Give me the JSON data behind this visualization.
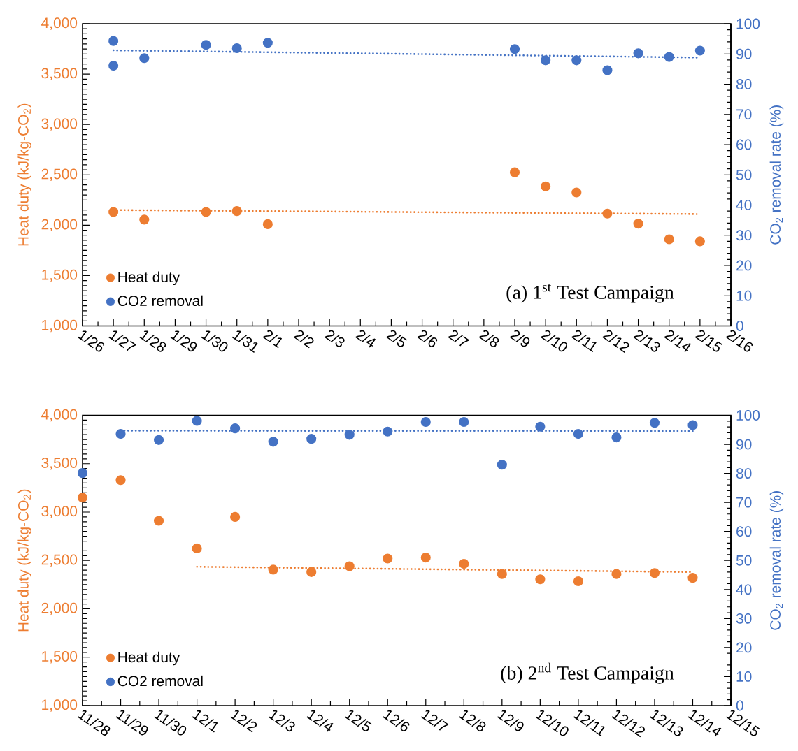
{
  "chart_data": [
    {
      "type": "scatter",
      "categories": [
        "1/26",
        "1/27",
        "1/28",
        "1/29",
        "1/30",
        "1/31",
        "2/1",
        "2/2",
        "2/3",
        "2/4",
        "2/5",
        "2/6",
        "2/7",
        "2/8",
        "2/9",
        "2/10",
        "2/11",
        "2/12",
        "2/13",
        "2/14",
        "2/15",
        "2/16"
      ],
      "ylabel": "Heat duty (kJ/kg-CO$_{2}$)",
      "y2label": "CO$_{2}$ removal rate (%)",
      "ylim": [
        1000,
        4000
      ],
      "yticks": [
        {
          "value": 1000,
          "label": "1,000"
        },
        {
          "value": 1500,
          "label": "1,500"
        },
        {
          "value": 2000,
          "label": "2,000"
        },
        {
          "value": 2500,
          "label": "2,500"
        },
        {
          "value": 3000,
          "label": "3,000"
        },
        {
          "value": 3500,
          "label": "3,500"
        },
        {
          "value": 4000,
          "label": "4,000"
        }
      ],
      "y2lim": [
        0,
        100
      ],
      "y2ticks": [
        0,
        10,
        20,
        30,
        40,
        50,
        60,
        70,
        80,
        90,
        100
      ],
      "legend": "bottom left",
      "annotations": [
        "(a) 1$^{st}$ Test Campaign"
      ],
      "series": [
        {
          "name": "Heat duty",
          "color": "#ed7d31",
          "marker": "circle",
          "x": [
            "1/27",
            "1/28",
            "1/30",
            "1/31",
            "2/1",
            "2/9",
            "2/10",
            "2/11",
            "2/12",
            "2/13",
            "2/14",
            "2/15"
          ],
          "values": [
            2130,
            2055,
            2130,
            2140,
            2010,
            2525,
            2385,
            2325,
            2115,
            2015,
            1860,
            1840
          ]
        },
        {
          "name": "CO2 removal",
          "color": "#4472c4",
          "axis": "y2",
          "marker": "circle",
          "x": [
            "1/27",
            "1/27",
            "1/28",
            "1/30",
            "1/31",
            "2/1",
            "2/9",
            "2/10",
            "2/11",
            "2/12",
            "2/13",
            "2/14",
            "2/15"
          ],
          "values": [
            94.3,
            86.1,
            88.6,
            93.0,
            91.9,
            93.7,
            91.6,
            87.9,
            87.9,
            84.6,
            90.2,
            89.0,
            91.1
          ]
        },
        {
          "type": "line",
          "color": "#ed7d31",
          "marker": "none",
          "line_style": "dotted",
          "x": [
            "1/27",
            "2/15"
          ],
          "values": [
            2150,
            2110
          ]
        },
        {
          "type": "line",
          "color": "#4472c4",
          "axis": "y2",
          "marker": "none",
          "line_style": "dotted",
          "x": [
            "1/27",
            "2/15"
          ],
          "values": [
            91.2,
            88.8
          ]
        }
      ]
    },
    {
      "type": "scatter",
      "categories": [
        "11/28",
        "11/29",
        "11/30",
        "12/1",
        "12/2",
        "12/3",
        "12/4",
        "12/5",
        "12/6",
        "12/7",
        "12/8",
        "12/9",
        "12/10",
        "12/11",
        "12/12",
        "12/13",
        "12/14",
        "12/15"
      ],
      "ylabel": "Heat duty (kJ/kg-CO$_{2}$)",
      "y2label": "CO$_{2}$ removal rate (%)",
      "ylim": [
        1000,
        4000
      ],
      "yticks": [
        {
          "value": 1000,
          "label": "1,000"
        },
        {
          "value": 1500,
          "label": "1,500"
        },
        {
          "value": 2000,
          "label": "2,000"
        },
        {
          "value": 2500,
          "label": "2,500"
        },
        {
          "value": 3000,
          "label": "3,000"
        },
        {
          "value": 3500,
          "label": "3,500"
        },
        {
          "value": 4000,
          "label": "4,000"
        }
      ],
      "y2lim": [
        0,
        100
      ],
      "y2ticks": [
        0,
        10,
        20,
        30,
        40,
        50,
        60,
        70,
        80,
        90,
        100
      ],
      "legend": "bottom left",
      "annotations": [
        "(b) 2$^{nd}$ Test Campaign"
      ],
      "series": [
        {
          "name": "Heat duty",
          "color": "#ed7d31",
          "marker": "circle",
          "x": [
            "11/28",
            "11/29",
            "11/30",
            "12/1",
            "12/2",
            "12/3",
            "12/4",
            "12/5",
            "12/6",
            "12/7",
            "12/8",
            "12/9",
            "12/10",
            "12/11",
            "12/12",
            "12/13",
            "12/14"
          ],
          "values": [
            3150,
            3330,
            2910,
            2625,
            2950,
            2405,
            2380,
            2440,
            2520,
            2530,
            2465,
            2360,
            2305,
            2285,
            2360,
            2370,
            2320
          ]
        },
        {
          "name": "CO2 removal",
          "color": "#4472c4",
          "axis": "y2",
          "marker": "circle",
          "x": [
            "11/28",
            "11/29",
            "11/30",
            "12/1",
            "12/2",
            "12/3",
            "12/4",
            "12/5",
            "12/6",
            "12/7",
            "12/8",
            "12/9",
            "12/10",
            "12/11",
            "12/12",
            "12/13",
            "12/14"
          ],
          "values": [
            80.1,
            93.6,
            91.5,
            98.1,
            95.5,
            90.9,
            91.9,
            93.3,
            94.4,
            97.7,
            97.7,
            83.0,
            96.1,
            93.6,
            92.4,
            97.4,
            96.6
          ]
        },
        {
          "type": "line",
          "color": "#ed7d31",
          "marker": "none",
          "line_style": "dotted",
          "x": [
            "12/1",
            "12/14"
          ],
          "values": [
            2435,
            2380
          ]
        },
        {
          "type": "line",
          "color": "#4472c4",
          "axis": "y2",
          "marker": "none",
          "line_style": "dotted",
          "x": [
            "11/29",
            "12/14"
          ],
          "values": [
            94.7,
            94.6
          ]
        }
      ]
    }
  ]
}
